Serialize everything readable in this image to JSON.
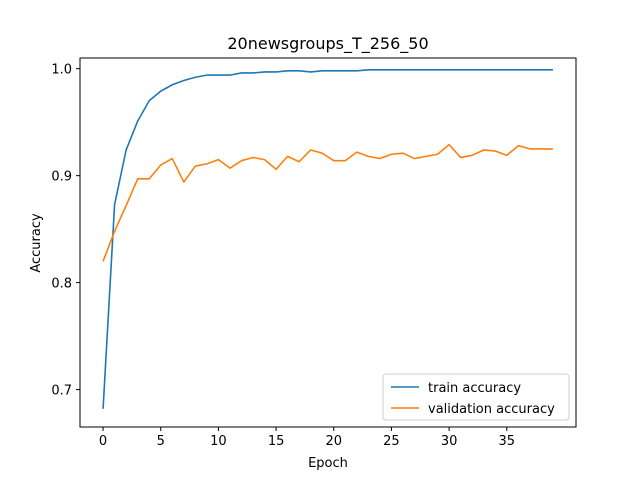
{
  "chart_data": {
    "type": "line",
    "title": "20newsgroups_T_256_50",
    "xlabel": "Epoch",
    "ylabel": "Accuracy",
    "xlim": [
      -2,
      41
    ],
    "ylim": [
      0.665,
      1.01
    ],
    "xticks": [
      0,
      5,
      10,
      15,
      20,
      25,
      30,
      35
    ],
    "yticks": [
      0.7,
      0.8,
      0.9,
      1.0
    ],
    "ytick_labels": [
      "0.7",
      "0.8",
      "0.9",
      "1.0"
    ],
    "grid": false,
    "legend": "lower-right",
    "x": [
      0,
      1,
      2,
      3,
      4,
      5,
      6,
      7,
      8,
      9,
      10,
      11,
      12,
      13,
      14,
      15,
      16,
      17,
      18,
      19,
      20,
      21,
      22,
      23,
      24,
      25,
      26,
      27,
      28,
      29,
      30,
      31,
      32,
      33,
      34,
      35,
      36,
      37,
      38,
      39
    ],
    "series": [
      {
        "name": "train accuracy",
        "color": "#1f77b4",
        "values": [
          0.682,
          0.873,
          0.924,
          0.951,
          0.97,
          0.979,
          0.985,
          0.989,
          0.992,
          0.994,
          0.994,
          0.994,
          0.996,
          0.996,
          0.997,
          0.997,
          0.998,
          0.998,
          0.997,
          0.998,
          0.998,
          0.998,
          0.998,
          0.999,
          0.999,
          0.999,
          0.999,
          0.999,
          0.999,
          0.999,
          0.999,
          0.999,
          0.999,
          0.999,
          0.999,
          0.999,
          0.999,
          0.999,
          0.999,
          0.999
        ]
      },
      {
        "name": "validation accuracy",
        "color": "#ff7f0e",
        "values": [
          0.82,
          0.848,
          0.872,
          0.897,
          0.897,
          0.91,
          0.916,
          0.894,
          0.909,
          0.911,
          0.915,
          0.907,
          0.914,
          0.917,
          0.915,
          0.906,
          0.918,
          0.913,
          0.924,
          0.921,
          0.914,
          0.914,
          0.922,
          0.918,
          0.916,
          0.92,
          0.921,
          0.916,
          0.918,
          0.92,
          0.929,
          0.917,
          0.919,
          0.924,
          0.923,
          0.919,
          0.928,
          0.925,
          0.925,
          0.925
        ]
      }
    ]
  }
}
